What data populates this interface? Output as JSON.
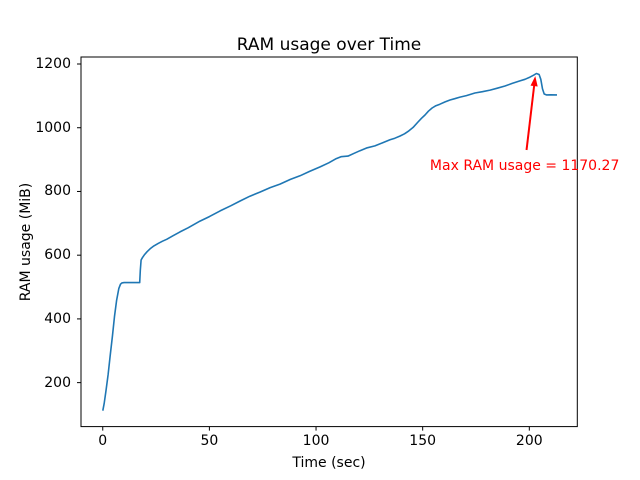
{
  "figure": {
    "background": "#ffffff"
  },
  "chart_data": {
    "type": "line",
    "title": "RAM usage over Time",
    "xlabel": "Time (sec)",
    "ylabel": "RAM usage (MiB)",
    "grid": false,
    "legend": null,
    "xlim": [
      -10.2,
      222.5
    ],
    "ylim": [
      62,
      1222
    ],
    "x_ticks": [
      {
        "value": 0,
        "label": "0"
      },
      {
        "value": 50,
        "label": "50"
      },
      {
        "value": 100,
        "label": "100"
      },
      {
        "value": 150,
        "label": "150"
      },
      {
        "value": 200,
        "label": "200"
      }
    ],
    "y_ticks": [
      {
        "value": 200,
        "label": "200"
      },
      {
        "value": 400,
        "label": "400"
      },
      {
        "value": 600,
        "label": "600"
      },
      {
        "value": 800,
        "label": "800"
      },
      {
        "value": 1000,
        "label": "1000"
      },
      {
        "value": 1200,
        "label": "1200"
      }
    ],
    "series": [
      {
        "name": "RAM usage",
        "color": "#1f77b4",
        "points": [
          [
            0,
            112
          ],
          [
            0.7,
            135
          ],
          [
            1.5,
            175
          ],
          [
            2.5,
            225
          ],
          [
            3.5,
            285
          ],
          [
            4.5,
            345
          ],
          [
            5.5,
            408
          ],
          [
            6.5,
            458
          ],
          [
            7.5,
            495
          ],
          [
            8.3,
            509
          ],
          [
            9,
            513
          ],
          [
            10,
            514
          ],
          [
            17.3,
            514
          ],
          [
            17.6,
            552
          ],
          [
            18,
            585
          ],
          [
            18.6,
            592
          ],
          [
            19.5,
            601
          ],
          [
            20.8,
            611
          ],
          [
            22.2,
            620
          ],
          [
            24,
            629
          ],
          [
            26,
            637
          ],
          [
            28,
            644
          ],
          [
            30,
            650
          ],
          [
            33,
            661
          ],
          [
            36.2,
            673
          ],
          [
            40,
            686
          ],
          [
            45.6,
            707
          ],
          [
            50,
            721
          ],
          [
            55,
            739
          ],
          [
            60,
            755
          ],
          [
            64.4,
            770
          ],
          [
            69,
            785
          ],
          [
            73.7,
            798
          ],
          [
            78.5,
            812
          ],
          [
            83.1,
            823
          ],
          [
            88,
            838
          ],
          [
            92.5,
            849
          ],
          [
            97,
            863
          ],
          [
            101.9,
            877
          ],
          [
            106,
            890
          ],
          [
            109.5,
            903
          ],
          [
            111.7,
            909
          ],
          [
            115,
            911
          ],
          [
            118,
            920
          ],
          [
            120.6,
            928
          ],
          [
            124,
            937
          ],
          [
            127.6,
            943
          ],
          [
            131,
            952
          ],
          [
            134.7,
            962
          ],
          [
            137,
            967
          ],
          [
            139.4,
            974
          ],
          [
            141.5,
            981
          ],
          [
            143.5,
            990
          ],
          [
            145.5,
            1001
          ],
          [
            147.8,
            1018
          ],
          [
            149.5,
            1030
          ],
          [
            151.1,
            1040
          ],
          [
            152.7,
            1052
          ],
          [
            154.4,
            1062
          ],
          [
            156.2,
            1069
          ],
          [
            158.1,
            1074
          ],
          [
            160.5,
            1081
          ],
          [
            162.8,
            1087
          ],
          [
            165,
            1091
          ],
          [
            167.5,
            1096
          ],
          [
            170.5,
            1101
          ],
          [
            174.5,
            1109
          ],
          [
            178,
            1113
          ],
          [
            181.6,
            1118
          ],
          [
            185,
            1124
          ],
          [
            188.6,
            1131
          ],
          [
            192,
            1139
          ],
          [
            195.6,
            1147
          ],
          [
            198,
            1152
          ],
          [
            200.3,
            1159
          ],
          [
            202,
            1165
          ],
          [
            203.3,
            1170.27
          ],
          [
            204.6,
            1167
          ],
          [
            205.4,
            1152
          ],
          [
            206.2,
            1122
          ],
          [
            207,
            1106
          ],
          [
            208,
            1103
          ],
          [
            210,
            1103.5
          ],
          [
            213,
            1103
          ]
        ]
      }
    ],
    "annotation": {
      "text": "Max RAM usage = 1170.27",
      "max_value": 1170.27,
      "color": "#ff0000",
      "arrow_tip": [
        202.8,
        1162
      ],
      "arrow_tail": [
        198.7,
        930
      ],
      "text_pos": [
        153.4,
        880
      ]
    }
  }
}
